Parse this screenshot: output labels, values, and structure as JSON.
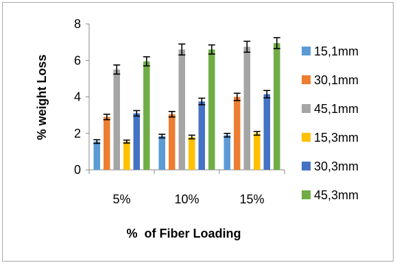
{
  "chart_data": {
    "type": "bar",
    "title": "",
    "xlabel": "%  of Fiber Loading",
    "ylabel": "% weight Loss",
    "ylim": [
      0,
      8
    ],
    "yticks": [
      "0",
      "2",
      "4",
      "6",
      "8"
    ],
    "grid": false,
    "error_bars": true,
    "legend_position": "right",
    "categories": [
      "5%",
      "10%",
      "15%"
    ],
    "series": [
      {
        "name": "15,1mm",
        "color": "#5b9bd5",
        "values": [
          1.55,
          1.85,
          1.9
        ],
        "errors": [
          0.1,
          0.1,
          0.1
        ]
      },
      {
        "name": "30,1mm",
        "color": "#ed7d31",
        "values": [
          2.9,
          3.05,
          4.0
        ],
        "errors": [
          0.15,
          0.15,
          0.2
        ]
      },
      {
        "name": "45,1mm",
        "color": "#a5a5a5",
        "values": [
          5.5,
          6.6,
          6.75
        ],
        "errors": [
          0.25,
          0.3,
          0.3
        ]
      },
      {
        "name": " 15,3mm",
        "color": "#ffc000",
        "values": [
          1.55,
          1.8,
          2.0
        ],
        "errors": [
          0.08,
          0.1,
          0.1
        ]
      },
      {
        "name": "30,3mm",
        "color": "#4472c4",
        "values": [
          3.1,
          3.75,
          4.15
        ],
        "errors": [
          0.15,
          0.18,
          0.2
        ]
      },
      {
        "name": "45,3mm",
        "color": "#70ad47",
        "values": [
          5.95,
          6.6,
          6.95
        ],
        "errors": [
          0.25,
          0.25,
          0.3
        ]
      }
    ]
  }
}
